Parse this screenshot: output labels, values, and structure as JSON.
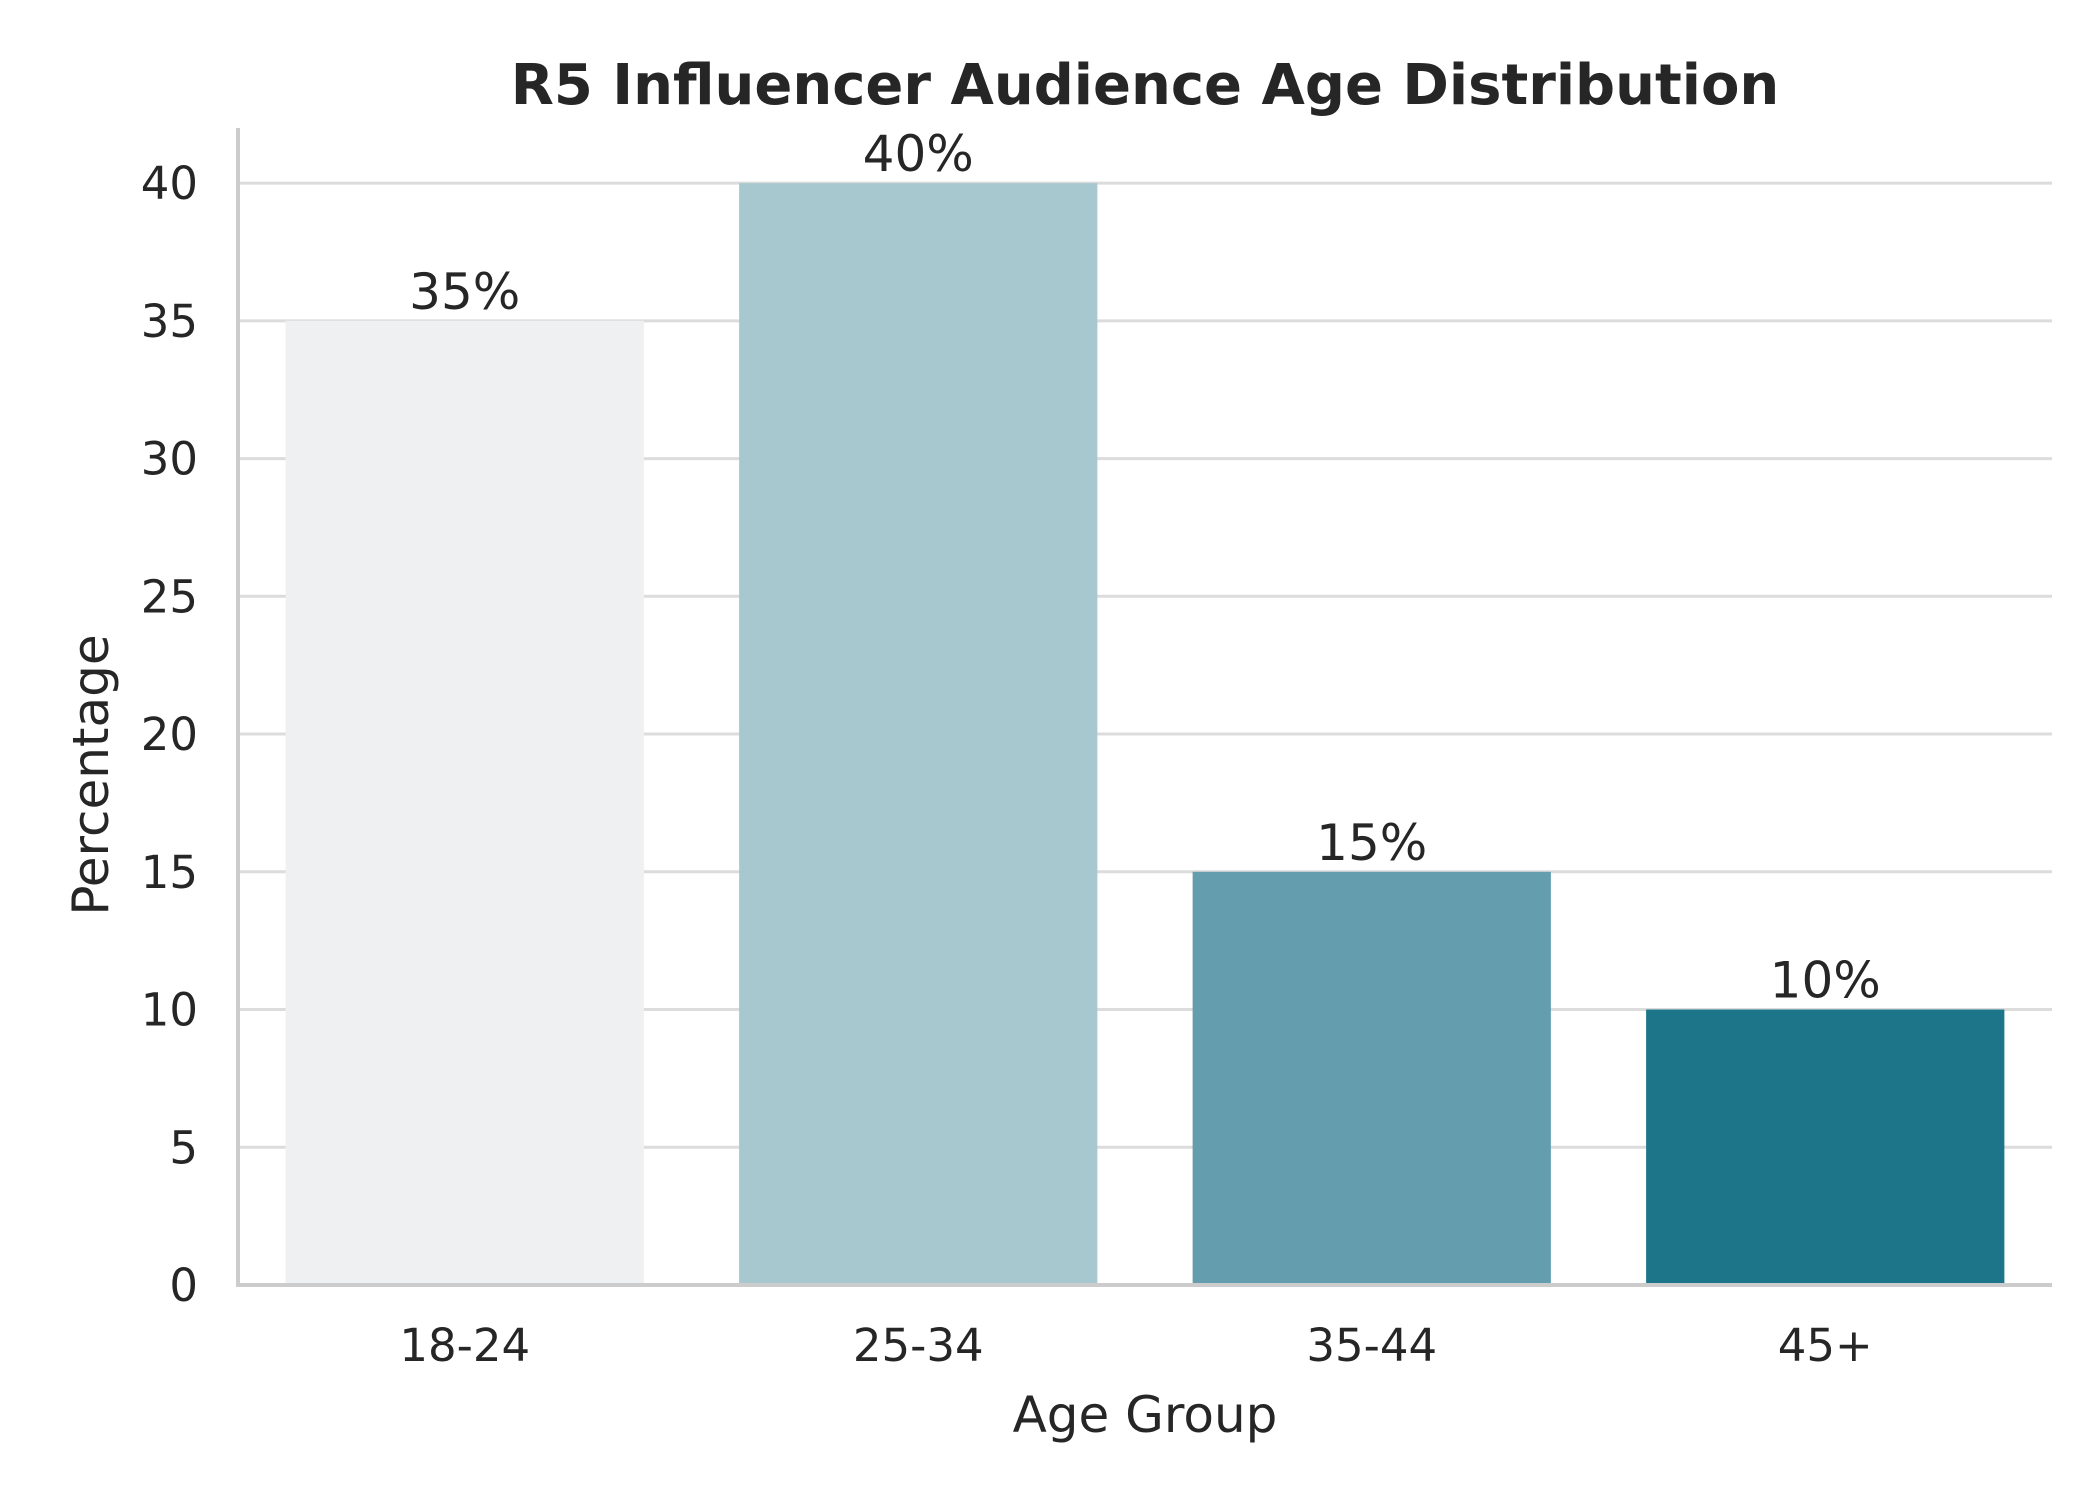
{
  "chart_data": {
    "type": "bar",
    "title": "R5 Influencer Audience Age Distribution",
    "xlabel": "Age Group",
    "ylabel": "Percentage",
    "categories": [
      "18-24",
      "25-34",
      "35-44",
      "45+"
    ],
    "values": [
      35,
      40,
      15,
      10
    ],
    "data_labels": [
      "35%",
      "40%",
      "15%",
      "10%"
    ],
    "bar_colors": [
      "#eff0f2",
      "#a8c8cf",
      "#649eae",
      "#1c7589"
    ],
    "ylim": [
      0,
      42
    ],
    "yticks": [
      0,
      5,
      10,
      15,
      20,
      25,
      30,
      35,
      40
    ],
    "grid": true,
    "grid_axis": "y",
    "grid_color": "#dcdcdc",
    "spine_color": "#cccccc",
    "text_color": "#262626",
    "legend": "none"
  }
}
